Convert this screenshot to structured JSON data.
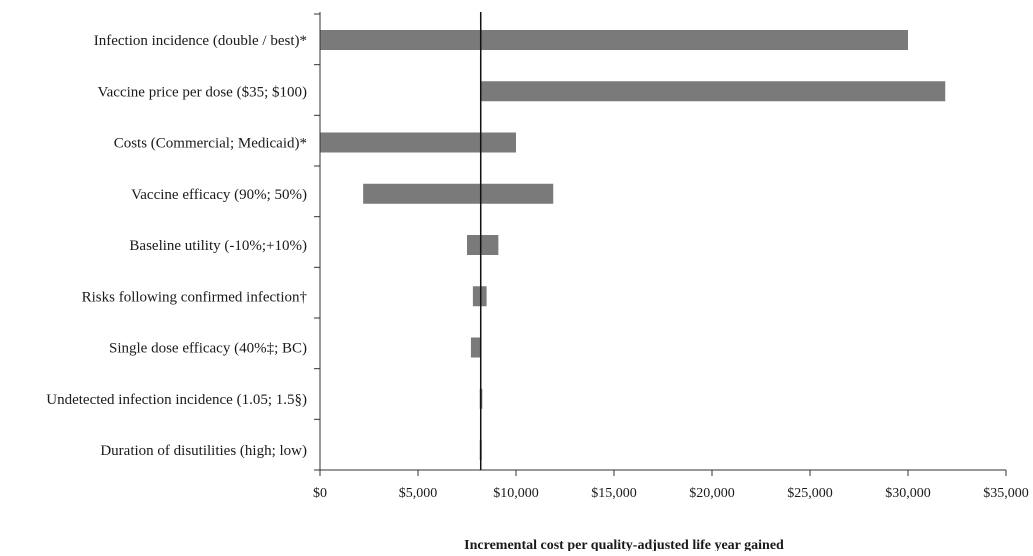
{
  "chart_data": {
    "type": "bar",
    "orientation": "horizontal",
    "subtype": "tornado",
    "title": "",
    "xlabel": "Incremental cost per quality-adjusted life year gained",
    "ylabel": "",
    "xlim": [
      0,
      35000
    ],
    "x_ticks": [
      0,
      5000,
      10000,
      15000,
      20000,
      25000,
      30000,
      35000
    ],
    "x_tick_labels": [
      "$0",
      "$5,000",
      "$10,000",
      "$15,000",
      "$20,000",
      "$25,000",
      "$30,000",
      "$35,000"
    ],
    "base_case": 8200,
    "grid": false,
    "legend": "none",
    "bar_color": "#7a7a7a",
    "categories": [
      "Infection incidence (double / best)*",
      "Vaccine price per dose ($35; $100)",
      "Costs (Commercial; Medicaid)*",
      "Vaccine efficacy (90%; 50%)",
      "Baseline utility (-10%;+10%)",
      "Risks following confirmed infection†",
      "Single dose efficacy (40%‡; BC)",
      "Undetected infection incidence (1.05; 1.5§)",
      "Duration of disutilities (high; low)"
    ],
    "ranges": [
      [
        0,
        30000
      ],
      [
        8200,
        31900
      ],
      [
        0,
        10000
      ],
      [
        2200,
        11900
      ],
      [
        7500,
        9100
      ],
      [
        7800,
        8500
      ],
      [
        7700,
        8200
      ],
      [
        8150,
        8280
      ],
      [
        8150,
        8220
      ]
    ]
  }
}
